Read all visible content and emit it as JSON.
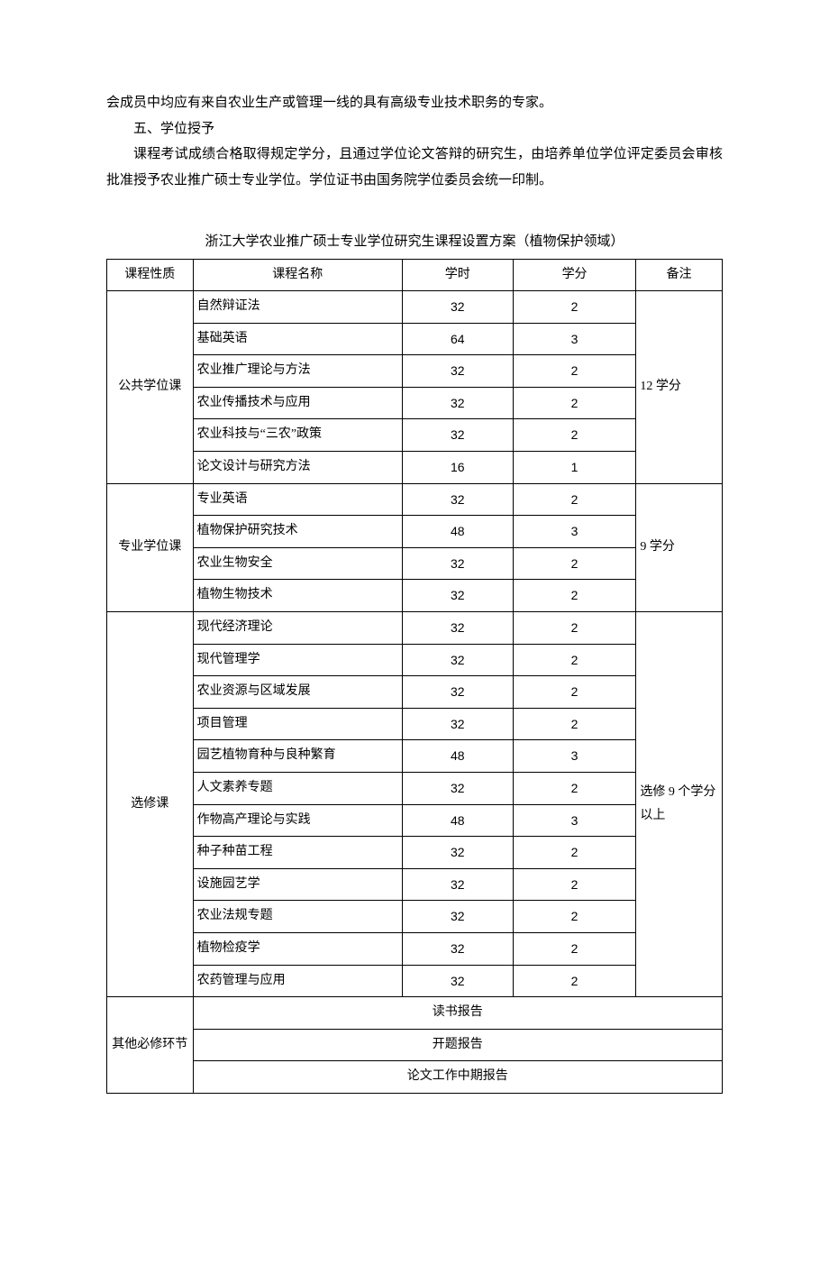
{
  "paragraphs": {
    "p1": "会成员中均应有来自农业生产或管理一线的具有高级专业技术职务的专家。",
    "p2": "五、学位授予",
    "p3": "课程考试成绩合格取得规定学分，且通过学位论文答辩的研究生，由培养单位学位评定委员会审核批准授予农业推广硕士专业学位。学位证书由国务院学位委员会统一印制。"
  },
  "table_title": "浙江大学农业推广硕士专业学位研究生课程设置方案（植物保护领域）",
  "headers": {
    "category": "课程性质",
    "name": "课程名称",
    "hours": "学时",
    "credits": "学分",
    "note": "备注"
  },
  "groups": [
    {
      "category": "公共学位课",
      "note": "12 学分",
      "rows": [
        {
          "name": "自然辩证法",
          "hours": "32",
          "credits": "2"
        },
        {
          "name": "基础英语",
          "hours": "64",
          "credits": "3"
        },
        {
          "name": "农业推广理论与方法",
          "hours": "32",
          "credits": "2"
        },
        {
          "name": "农业传播技术与应用",
          "hours": "32",
          "credits": "2"
        },
        {
          "name": "农业科技与“三农”政策",
          "hours": "32",
          "credits": "2"
        },
        {
          "name": "论文设计与研究方法",
          "hours": "16",
          "credits": "1"
        }
      ]
    },
    {
      "category": "专业学位课",
      "note": "9 学分",
      "rows": [
        {
          "name": "专业英语",
          "hours": "32",
          "credits": "2"
        },
        {
          "name": "植物保护研究技术",
          "hours": "48",
          "credits": "3"
        },
        {
          "name": "农业生物安全",
          "hours": "32",
          "credits": "2"
        },
        {
          "name": "植物生物技术",
          "hours": "32",
          "credits": "2"
        }
      ]
    },
    {
      "category": "选修课",
      "note": "选修 9 个学分以上",
      "rows": [
        {
          "name": "现代经济理论",
          "hours": "32",
          "credits": "2"
        },
        {
          "name": "现代管理学",
          "hours": "32",
          "credits": "2"
        },
        {
          "name": "农业资源与区域发展",
          "hours": "32",
          "credits": "2"
        },
        {
          "name": "项目管理",
          "hours": "32",
          "credits": "2"
        },
        {
          "name": "园艺植物育种与良种繁育",
          "hours": "48",
          "credits": "3"
        },
        {
          "name": "人文素养专题",
          "hours": "32",
          "credits": "2"
        },
        {
          "name": "作物高产理论与实践",
          "hours": "48",
          "credits": "3"
        },
        {
          "name": "种子种苗工程",
          "hours": "32",
          "credits": "2"
        },
        {
          "name": "设施园艺学",
          "hours": "32",
          "credits": "2"
        },
        {
          "name": "农业法规专题",
          "hours": "32",
          "credits": "2"
        },
        {
          "name": "植物检疫学",
          "hours": "32",
          "credits": "2"
        },
        {
          "name": "农药管理与应用",
          "hours": "32",
          "credits": "2"
        }
      ]
    }
  ],
  "other_section": {
    "category": "其他必修环节",
    "items": [
      "读书报告",
      "开题报告",
      "论文工作中期报告"
    ]
  }
}
